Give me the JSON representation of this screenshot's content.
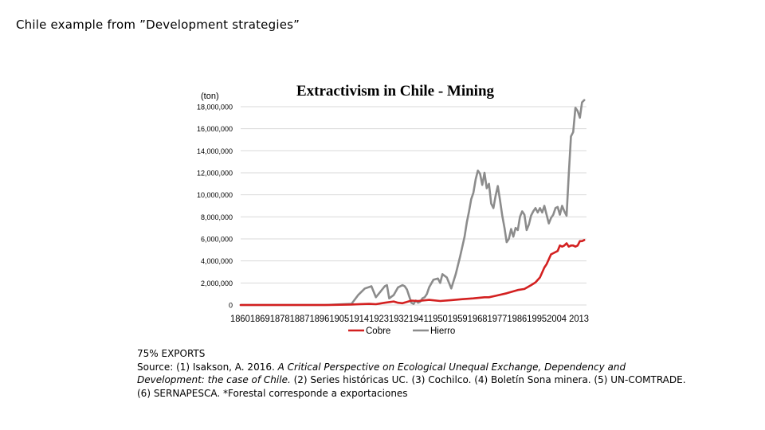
{
  "slide": {
    "title": "Chile example from ”Development strategies”"
  },
  "chart_data": {
    "type": "line",
    "title": "Extractivism in Chile - Mining",
    "unit_label": "(ton)",
    "xlabel": "",
    "ylabel": "",
    "ylim": [
      0,
      18000000
    ],
    "yticks": [
      0,
      2000000,
      4000000,
      6000000,
      8000000,
      10000000,
      12000000,
      14000000,
      16000000,
      18000000
    ],
    "ytick_labels": [
      "0",
      "2,000,000",
      "4,000,000",
      "6,000,000",
      "8,000,000",
      "10,000,000",
      "12,000,000",
      "14,000,000",
      "16,000,000",
      "18,000,000"
    ],
    "xlim": [
      1860,
      2016
    ],
    "xtick_labels_text": "18601869187818871896190519141923193219411950195919681977198619952004 2013",
    "grid": true,
    "legend_position": "bottom",
    "series": [
      {
        "name": "Cobre",
        "color": "#d32020",
        "x": [
          1860,
          1900,
          1910,
          1914,
          1918,
          1921,
          1925,
          1929,
          1931,
          1933,
          1937,
          1940,
          1945,
          1950,
          1955,
          1960,
          1965,
          1970,
          1972,
          1975,
          1980,
          1985,
          1988,
          1991,
          1993,
          1995,
          1997,
          1998,
          2000,
          2001,
          2003,
          2004,
          2005,
          2006,
          2007,
          2008,
          2009,
          2010,
          2011,
          2012,
          2013,
          2014,
          2015
        ],
        "values": [
          0,
          0,
          40000,
          80000,
          100000,
          70000,
          200000,
          320000,
          200000,
          160000,
          400000,
          360000,
          460000,
          360000,
          440000,
          530000,
          600000,
          700000,
          700000,
          830000,
          1060000,
          1360000,
          1450000,
          1800000,
          2050000,
          2500000,
          3400000,
          3700000,
          4600000,
          4700000,
          4900000,
          5400000,
          5300000,
          5400000,
          5600000,
          5300000,
          5400000,
          5400000,
          5300000,
          5400000,
          5800000,
          5800000,
          5900000
        ]
      },
      {
        "name": "Hierro",
        "color": "#8c8c8c",
        "x": [
          1860,
          1898,
          1905,
          1910,
          1913,
          1916,
          1919,
          1921,
          1923,
          1925,
          1926,
          1927,
          1929,
          1931,
          1932,
          1933,
          1934,
          1935,
          1937,
          1938,
          1939,
          1940,
          1941,
          1942,
          1943,
          1944,
          1945,
          1947,
          1949,
          1950,
          1951,
          1953,
          1955,
          1957,
          1959,
          1961,
          1962,
          1963,
          1964,
          1965,
          1966,
          1967,
          1968,
          1969,
          1970,
          1971,
          1972,
          1973,
          1974,
          1975,
          1976,
          1977,
          1978,
          1979,
          1980,
          1981,
          1982,
          1983,
          1984,
          1985,
          1986,
          1987,
          1988,
          1989,
          1990,
          1991,
          1992,
          1993,
          1994,
          1995,
          1996,
          1997,
          1998,
          1999,
          2000,
          2001,
          2002,
          2003,
          2004,
          2005,
          2006,
          2007,
          2008,
          2009,
          2010,
          2011,
          2012,
          2013,
          2014,
          2015
        ],
        "values": [
          0,
          0,
          60000,
          100000,
          900000,
          1500000,
          1700000,
          700000,
          1200000,
          1700000,
          1800000,
          600000,
          900000,
          1600000,
          1700000,
          1800000,
          1700000,
          1400000,
          200000,
          100000,
          400000,
          200000,
          300000,
          600000,
          700000,
          1000000,
          1600000,
          2300000,
          2400000,
          2000000,
          2800000,
          2500000,
          1500000,
          2800000,
          4400000,
          6200000,
          7500000,
          8500000,
          9600000,
          10200000,
          11400000,
          12200000,
          11900000,
          10900000,
          12000000,
          10600000,
          11000000,
          9200000,
          8800000,
          9900000,
          10800000,
          9500000,
          8100000,
          7000000,
          5700000,
          6000000,
          6900000,
          6200000,
          7000000,
          6800000,
          8000000,
          8500000,
          8200000,
          6800000,
          7300000,
          8100000,
          8500000,
          8800000,
          8400000,
          8800000,
          8400000,
          9000000,
          8200000,
          7400000,
          7900000,
          8200000,
          8800000,
          8900000,
          8200000,
          9000000,
          8500000,
          8100000,
          11800000,
          15300000,
          15700000,
          17900000,
          17600000,
          17000000,
          18400000,
          18600000
        ]
      }
    ]
  },
  "notes": {
    "line1": "75% EXPORTS",
    "source_prefix": "Source: (1) Isakson, A. 2016. ",
    "source_italic_1": "A Critical Perspective on Ecological Unequal Exchange, Dependency and",
    "source_italic_2": "Development: the case of Chile.",
    "source_rest_2": " (2) Series históricas UC. (3)  Cochilco. (4)  Boletín Sona minera. (5) UN-COMTRADE.",
    "source_line3": "(6) SERNAPESCA. *Forestal corresponde a exportaciones"
  }
}
